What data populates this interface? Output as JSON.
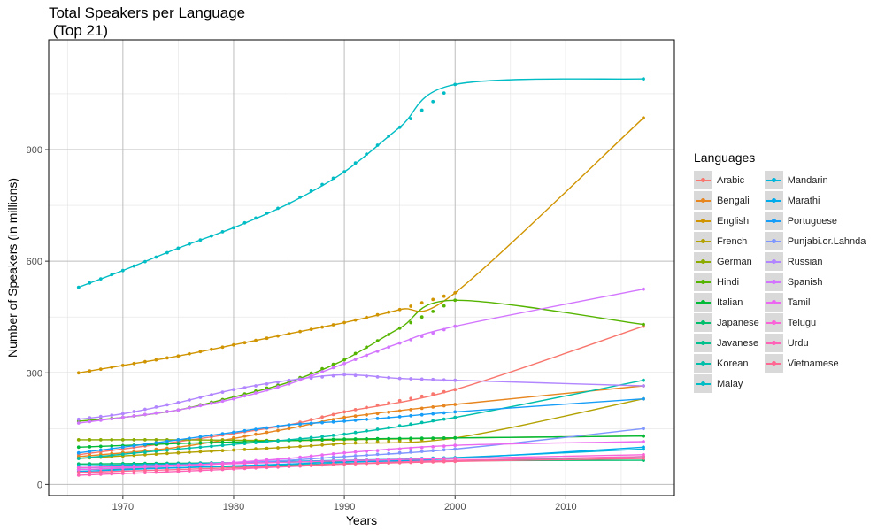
{
  "title_line1": "Total Speakers per Language",
  "title_line2": " (Top 21)",
  "chart_data": {
    "type": "line",
    "title": "Total Speakers per Language\n (Top 21)",
    "xlabel": "Years",
    "ylabel": "Number of Speakers (in millions)",
    "xlim": [
      1963.3,
      2019.8
    ],
    "ylim": [
      -30,
      1195
    ],
    "x_ticks": [
      1970,
      1980,
      1990,
      2000,
      2010
    ],
    "y_ticks": [
      0,
      300,
      600,
      900
    ],
    "grid": true,
    "legend_title": "Languages",
    "legend_position": "right",
    "series": [
      {
        "name": "Arabic",
        "color": "#F8766D",
        "x": [
          1966,
          1975,
          1985,
          1990,
          2000,
          2017
        ],
        "values": [
          80,
          115,
          160,
          195,
          255,
          425
        ]
      },
      {
        "name": "Bengali",
        "color": "#E7851E",
        "x": [
          1966,
          1975,
          1985,
          1990,
          2000,
          2017
        ],
        "values": [
          75,
          100,
          150,
          180,
          215,
          265
        ]
      },
      {
        "name": "English",
        "color": "#D09400",
        "x": [
          1966,
          1970,
          1975,
          1980,
          1985,
          1990,
          1995,
          2000,
          2017
        ],
        "values": [
          300,
          320,
          345,
          375,
          405,
          435,
          470,
          515,
          985
        ]
      },
      {
        "name": "French",
        "color": "#B2A100",
        "x": [
          1966,
          1975,
          1985,
          1990,
          2000,
          2017
        ],
        "values": [
          70,
          85,
          100,
          110,
          125,
          230
        ]
      },
      {
        "name": "German",
        "color": "#8BAB00",
        "x": [
          1966,
          1975,
          1985,
          1990,
          2000,
          2017
        ],
        "values": [
          120,
          120,
          118,
          120,
          125,
          130
        ]
      },
      {
        "name": "Hindi",
        "color": "#55B400",
        "x": [
          1966,
          1970,
          1975,
          1980,
          1985,
          1990,
          1995,
          2000,
          2017
        ],
        "values": [
          170,
          180,
          200,
          235,
          275,
          335,
          420,
          495,
          430
        ]
      },
      {
        "name": "Italian",
        "color": "#00BA38",
        "x": [
          1966,
          1975,
          1985,
          1990,
          2000,
          2017
        ],
        "values": [
          100,
          110,
          118,
          122,
          125,
          130
        ]
      },
      {
        "name": "Japanese",
        "color": "#00BE6C",
        "x": [
          1966,
          1975,
          1985,
          1990,
          2000,
          2017
        ],
        "values": [
          55,
          57,
          60,
          62,
          64,
          65
        ]
      },
      {
        "name": "Javanese",
        "color": "#00C08D",
        "x": [
          1966,
          1975,
          1985,
          1990,
          2000,
          2017
        ],
        "values": [
          40,
          45,
          52,
          56,
          63,
          75
        ]
      },
      {
        "name": "Korean",
        "color": "#00BFAA",
        "x": [
          1966,
          1975,
          1985,
          1990,
          2000,
          2017
        ],
        "values": [
          70,
          95,
          120,
          135,
          180,
          280
        ]
      },
      {
        "name": "Malay",
        "color": "#00BCC4",
        "x": [
          1966,
          1970,
          1975,
          1980,
          1985,
          1990,
          1995,
          2000,
          2017
        ],
        "values": [
          530,
          575,
          635,
          690,
          755,
          840,
          960,
          1075,
          1090
        ]
      },
      {
        "name": "Mandarin",
        "color": "#00B5DA",
        "x": [
          1966,
          1975,
          1985,
          1990,
          2000,
          2017
        ],
        "values": [
          50,
          55,
          62,
          65,
          72,
          95
        ]
      },
      {
        "name": "Marathi",
        "color": "#00ABEC",
        "x": [
          1966,
          1975,
          1985,
          1990,
          2000,
          2017
        ],
        "values": [
          35,
          45,
          55,
          60,
          70,
          100
        ]
      },
      {
        "name": "Portuguese",
        "color": "#169DF8",
        "x": [
          1966,
          1970,
          1975,
          1980,
          1985,
          1990,
          1995,
          2000,
          2017
        ],
        "values": [
          85,
          100,
          120,
          140,
          160,
          170,
          182,
          195,
          230
        ]
      },
      {
        "name": "Punjabi.or.Lahnda",
        "color": "#7F96FF",
        "x": [
          1966,
          1975,
          1985,
          1990,
          2000,
          2017
        ],
        "values": [
          45,
          50,
          65,
          75,
          95,
          150
        ]
      },
      {
        "name": "Russian",
        "color": "#B186FF",
        "x": [
          1966,
          1970,
          1975,
          1980,
          1985,
          1990,
          1995,
          2000,
          2017
        ],
        "values": [
          175,
          190,
          220,
          255,
          280,
          295,
          285,
          280,
          265
        ]
      },
      {
        "name": "Spanish",
        "color": "#D376FF",
        "x": [
          1966,
          1970,
          1975,
          1980,
          1985,
          1990,
          1995,
          2000,
          2017
        ],
        "values": [
          165,
          180,
          200,
          230,
          270,
          325,
          380,
          425,
          525
        ]
      },
      {
        "name": "Tamil",
        "color": "#EB69F0",
        "x": [
          1966,
          1975,
          1985,
          1990,
          2000,
          2017
        ],
        "values": [
          40,
          50,
          70,
          85,
          105,
          115
        ]
      },
      {
        "name": "Telugu",
        "color": "#F965D9",
        "x": [
          1966,
          1975,
          1985,
          1990,
          2000,
          2017
        ],
        "values": [
          45,
          52,
          60,
          64,
          70,
          80
        ]
      },
      {
        "name": "Urdu",
        "color": "#FF63B8",
        "x": [
          1966,
          1975,
          1985,
          1990,
          2000,
          2017
        ],
        "values": [
          25,
          35,
          48,
          55,
          65,
          75
        ]
      },
      {
        "name": "Vietnamese",
        "color": "#FF6892",
        "x": [
          1966,
          1975,
          1985,
          1990,
          2000,
          2017
        ],
        "values": [
          32,
          40,
          50,
          55,
          62,
          70
        ]
      }
    ]
  }
}
